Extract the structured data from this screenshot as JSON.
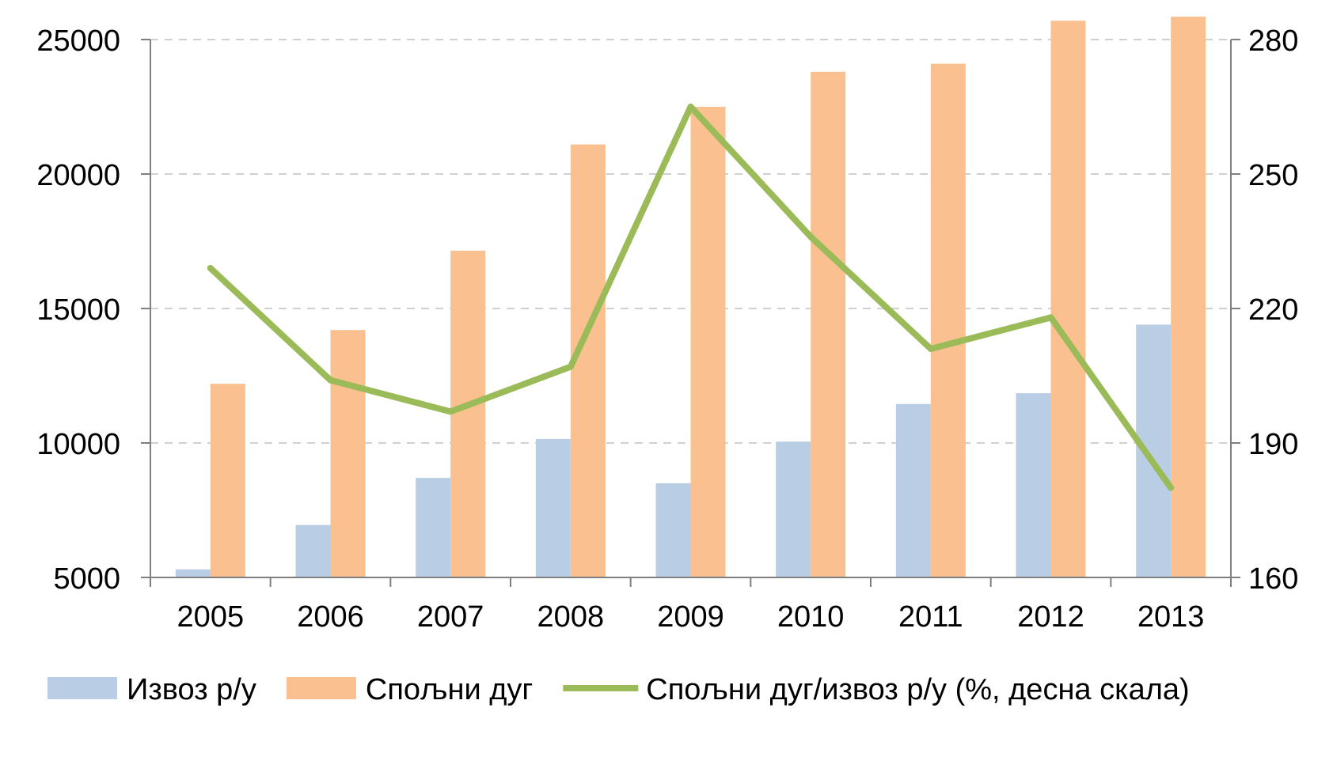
{
  "chart_data": {
    "type": "bar",
    "categories": [
      "2005",
      "2006",
      "2007",
      "2008",
      "2009",
      "2010",
      "2011",
      "2012",
      "2013"
    ],
    "series": [
      {
        "name": "Извоз р/у",
        "kind": "bar",
        "axis": "left",
        "color": "#B9CDE5",
        "values": [
          5300,
          6950,
          8700,
          10150,
          8500,
          10050,
          11450,
          11850,
          14400
        ]
      },
      {
        "name": "Спољни дуг",
        "kind": "bar",
        "axis": "left",
        "color": "#FAC090",
        "values": [
          12200,
          14200,
          17150,
          21100,
          22500,
          23800,
          24100,
          25700,
          25850
        ]
      },
      {
        "name": "Спољни дуг/извоз р/у (%, десна скала)",
        "kind": "line",
        "axis": "right",
        "color": "#9BBB59",
        "values": [
          229,
          204,
          197,
          207,
          265,
          236,
          211,
          218,
          180
        ]
      }
    ],
    "y_left": {
      "min": 5000,
      "max": 25000,
      "ticks": [
        "5000",
        "10000",
        "15000",
        "20000",
        "25000"
      ],
      "tick_values": [
        5000,
        10000,
        15000,
        20000,
        25000
      ]
    },
    "y_right": {
      "min": 160,
      "max": 280,
      "ticks": [
        "160",
        "190",
        "220",
        "250",
        "280"
      ],
      "tick_values": [
        160,
        190,
        220,
        250,
        280
      ]
    },
    "grid": true,
    "legend_position": "bottom",
    "title": "",
    "xlabel": "",
    "ylabel": ""
  }
}
